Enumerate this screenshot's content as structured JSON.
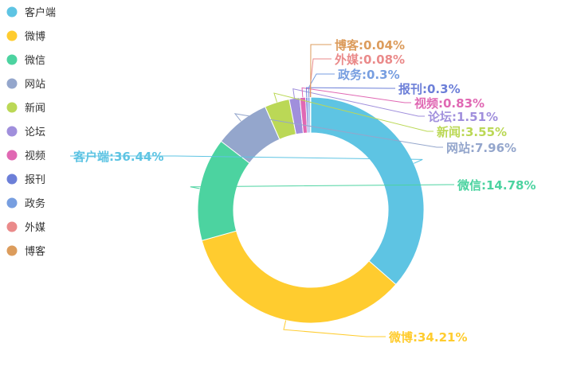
{
  "chart_data": {
    "type": "pie",
    "variant": "donut",
    "legend_position": "top-left",
    "series": [
      {
        "name": "客户端",
        "value": 36.44,
        "label": "客户端:36.44%",
        "color": "#5ec4e3"
      },
      {
        "name": "微博",
        "value": 34.21,
        "label": "微博:34.21%",
        "color": "#ffcc2f"
      },
      {
        "name": "微信",
        "value": 14.78,
        "label": "微信:14.78%",
        "color": "#4cd3a0"
      },
      {
        "name": "网站",
        "value": 7.96,
        "label": "网站:7.96%",
        "color": "#94a6cc"
      },
      {
        "name": "新闻",
        "value": 3.55,
        "label": "新闻:3.55%",
        "color": "#bbd856"
      },
      {
        "name": "论坛",
        "value": 1.51,
        "label": "论坛:1.51%",
        "color": "#a08fdc"
      },
      {
        "name": "视频",
        "value": 0.83,
        "label": "视频:0.83%",
        "color": "#e068b3"
      },
      {
        "name": "报刊",
        "value": 0.3,
        "label": "报刊:0.3%",
        "color": "#6c7fd8"
      },
      {
        "name": "政务",
        "value": 0.3,
        "label": "政务:0.3%",
        "color": "#779ee0"
      },
      {
        "name": "外媒",
        "value": 0.08,
        "label": "外媒:0.08%",
        "color": "#ea8a8a"
      },
      {
        "name": "博客",
        "value": 0.04,
        "label": "博客:0.04%",
        "color": "#dc9c5c"
      }
    ]
  }
}
